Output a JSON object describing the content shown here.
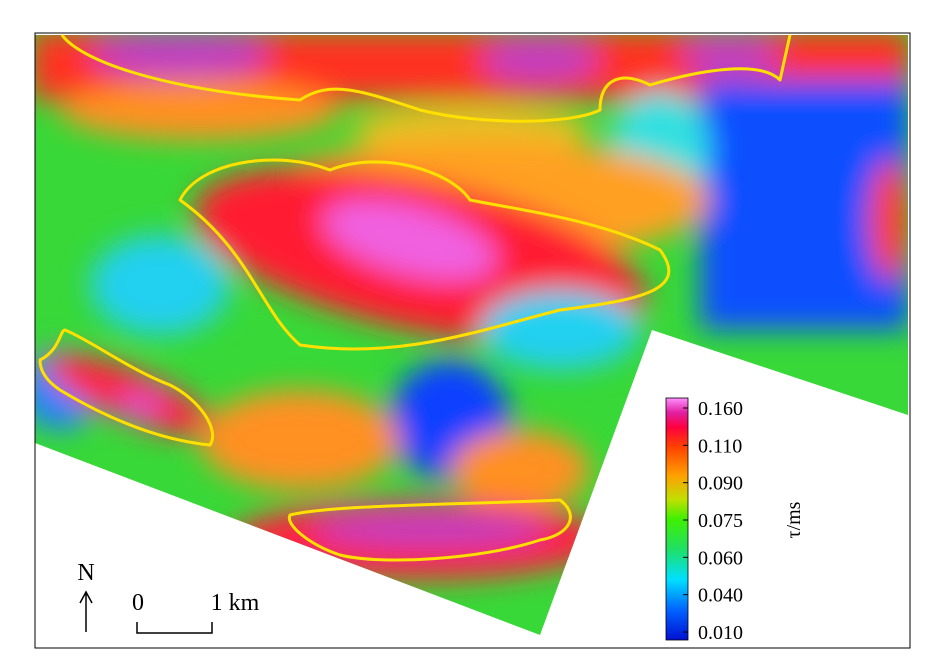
{
  "map": {
    "north_label": "N",
    "scale_bar": {
      "start_label": "0",
      "end_label": "1 km"
    },
    "colorbar": {
      "label": "τ/ms",
      "ticks": [
        {
          "value": 0.01,
          "label": "0.010"
        },
        {
          "value": 0.04,
          "label": "0.040"
        },
        {
          "value": 0.06,
          "label": "0.060"
        },
        0.075,
        {
          "value": 0.09,
          "label": "0.090"
        },
        {
          "value": 0.11,
          "label": "0.110"
        },
        {
          "value": 0.16,
          "label": "0.160"
        }
      ]
    }
  }
}
